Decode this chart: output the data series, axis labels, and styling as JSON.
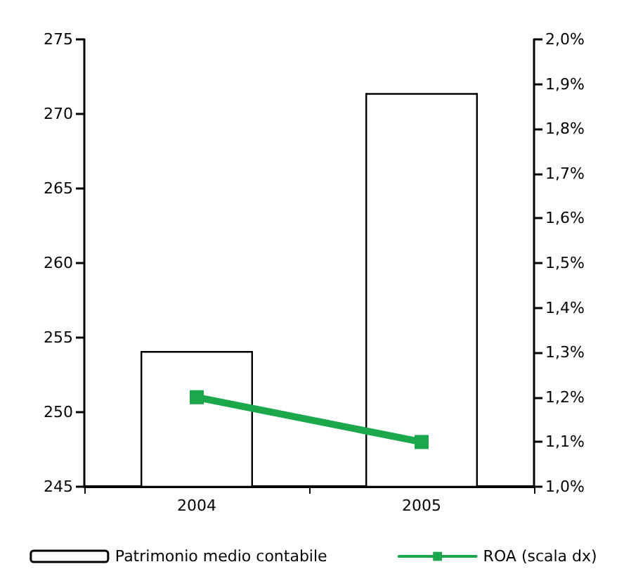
{
  "chart_data": {
    "type": "bar",
    "categories": [
      "2004",
      "2005"
    ],
    "series": [
      {
        "name": "Patrimonio medio contabile",
        "color": "#ffffff",
        "values": [
          254.1,
          271.4
        ]
      },
      {
        "name": "ROA (scala dx)",
        "type": "line",
        "axis": "y2",
        "color": "#1aa84b",
        "values": [
          1.2,
          1.1
        ]
      }
    ],
    "ylim": [
      245,
      275
    ],
    "yticks": [
      245,
      250,
      255,
      260,
      265,
      270,
      275
    ],
    "y2lim": [
      1.0,
      2.0
    ],
    "y2ticks": [
      {
        "value": 1.0,
        "label": "1,0%"
      },
      {
        "value": 1.1,
        "label": "1,1%"
      },
      {
        "value": 1.2,
        "label": "1,2%"
      },
      {
        "value": 1.3,
        "label": "1,3%"
      },
      {
        "value": 1.4,
        "label": "1,4%"
      },
      {
        "value": 1.5,
        "label": "1,5%"
      },
      {
        "value": 1.6,
        "label": "1,6%"
      },
      {
        "value": 1.7,
        "label": "1,7%"
      },
      {
        "value": 1.8,
        "label": "1,8%"
      },
      {
        "value": 1.9,
        "label": "1,9%"
      },
      {
        "value": 2.0,
        "label": "2,0%"
      }
    ],
    "legend": "bottom",
    "grid": false,
    "marker": "square",
    "line_style": "solid"
  }
}
